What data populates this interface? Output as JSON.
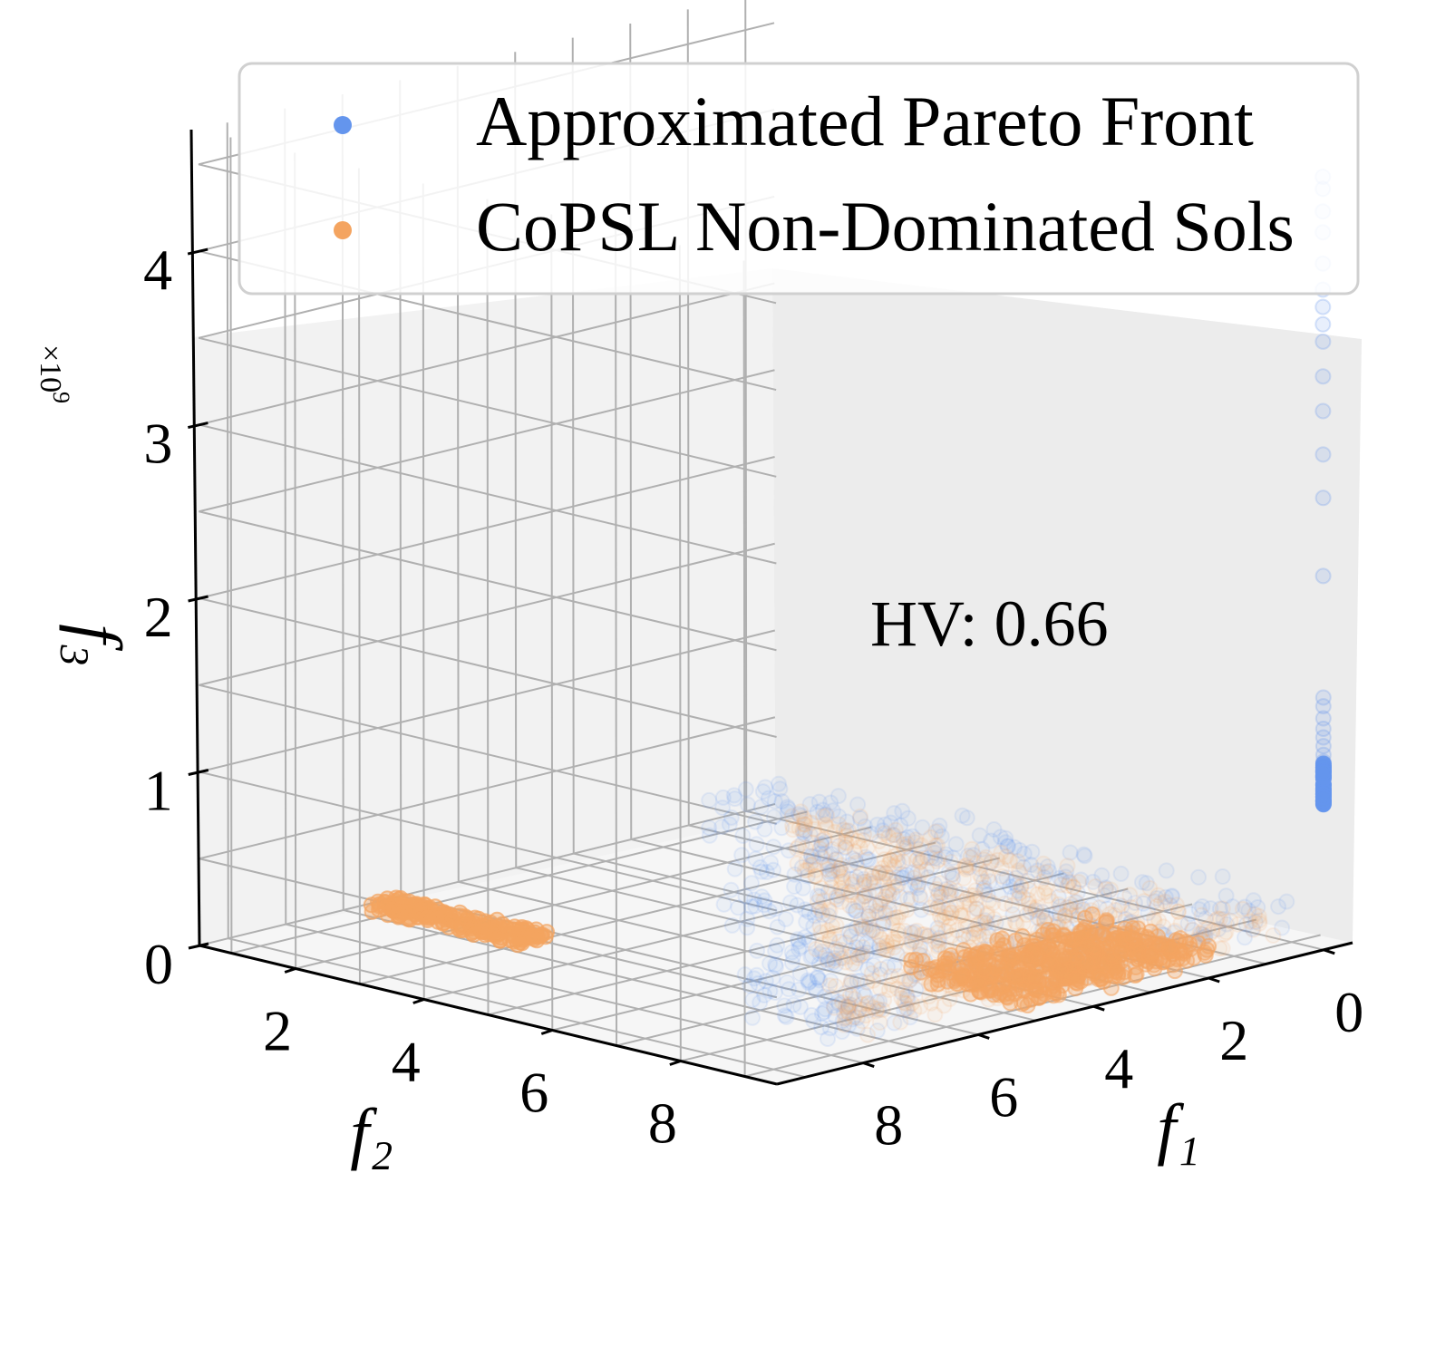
{
  "chart_data": {
    "type": "scatter3d",
    "annotation": "HV: 0.66",
    "legend": {
      "placement": "top-right",
      "entries": [
        {
          "label": "Approximated Pareto Front",
          "color": "#6495ED"
        },
        {
          "label": "CoPSL Non-Dominated Sols",
          "color": "#F4A460"
        }
      ]
    },
    "axes": {
      "x": {
        "label": "f₁",
        "ticks": [
          "0",
          "2",
          "4",
          "6",
          "8"
        ],
        "range": [
          -0.5,
          9.5
        ]
      },
      "y": {
        "label": "f₂",
        "ticks": [
          "2",
          "4",
          "6",
          "8"
        ],
        "range": [
          0.5,
          9.5
        ]
      },
      "z": {
        "label": "f₃",
        "ticks": [
          "0",
          "1",
          "2",
          "3",
          "4"
        ],
        "range": [
          0,
          4.7
        ],
        "multiplier": "×10",
        "multiplier_exp": "9"
      }
    },
    "series": [
      {
        "name": "Approximated Pareto Front",
        "color": "#6495ED",
        "description": "Spine of points at f1=0, f2≈5.3 rising in f3 up to ~4.4e9 plus a dense near-zero band",
        "spine_f3": [
          4.45,
          4.38,
          4.25,
          4.13,
          3.95,
          3.8,
          3.7,
          3.6,
          3.5,
          3.3,
          3.1,
          2.85,
          2.6,
          2.15,
          1.45,
          1.4,
          1.33,
          1.27,
          1.22,
          1.17,
          1.12,
          1.08,
          1.04,
          1.0
        ]
      },
      {
        "name": "CoPSL Non-Dominated Sols",
        "color": "#F4A460",
        "description": "Points near f3≈0 spread along f1∈[0,7], f2∈[1,8]"
      }
    ]
  }
}
